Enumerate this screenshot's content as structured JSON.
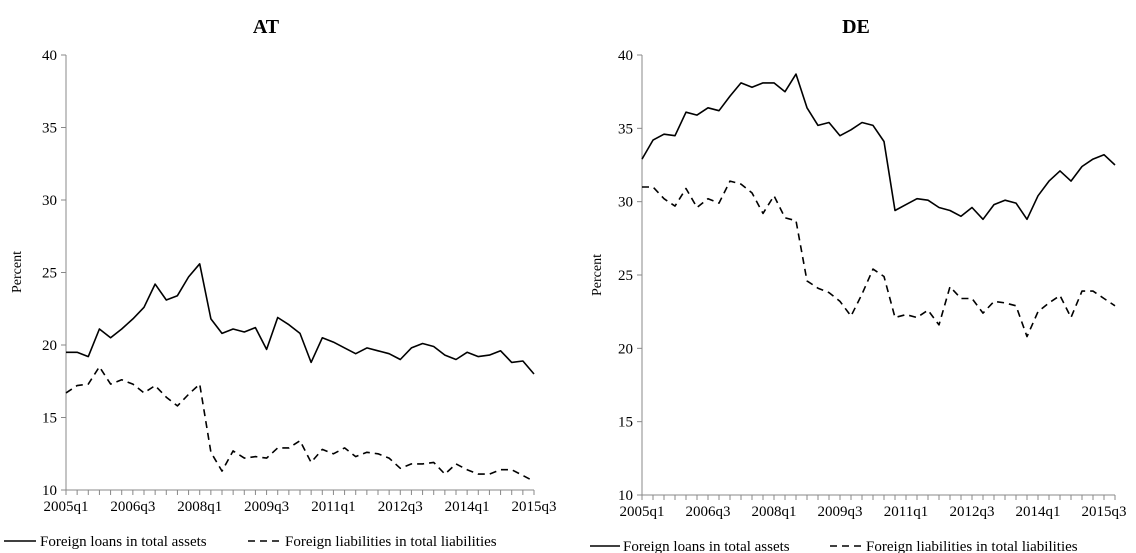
{
  "chart_data": [
    {
      "type": "line",
      "title": "AT",
      "ylabel": "Percent",
      "xlabel": "",
      "ylim": [
        10,
        40
      ],
      "yticks": [
        10,
        15,
        20,
        25,
        30,
        35,
        40
      ],
      "x_tick_labels": [
        {
          "index": 0,
          "label": "2005q1"
        },
        {
          "index": 6,
          "label": "2006q3"
        },
        {
          "index": 12,
          "label": "2008q1"
        },
        {
          "index": 18,
          "label": "2009q3"
        },
        {
          "index": 24,
          "label": "2011q1"
        },
        {
          "index": 30,
          "label": "2012q3"
        },
        {
          "index": 36,
          "label": "2014q1"
        },
        {
          "index": 42,
          "label": "2015q3"
        }
      ],
      "grid": false,
      "legend": "bottom",
      "series": [
        {
          "name": "Foreign loans in total assets",
          "style": "solid",
          "values": [
            19.5,
            19.5,
            19.2,
            21.1,
            20.5,
            21.1,
            21.8,
            22.6,
            24.2,
            23.1,
            23.4,
            24.7,
            25.6,
            21.8,
            20.8,
            21.1,
            20.9,
            21.2,
            19.7,
            21.9,
            21.4,
            20.8,
            18.8,
            20.5,
            20.2,
            19.8,
            19.4,
            19.8,
            19.6,
            19.4,
            19.0,
            19.8,
            20.1,
            19.9,
            19.3,
            19.0,
            19.5,
            19.2,
            19.3,
            19.6,
            18.8,
            18.9,
            18.0
          ]
        },
        {
          "name": "Foreign liabilities in total liabilities",
          "style": "dashed",
          "values": [
            16.7,
            17.2,
            17.3,
            18.5,
            17.3,
            17.6,
            17.3,
            16.7,
            17.2,
            16.4,
            15.8,
            16.6,
            17.3,
            12.6,
            11.3,
            12.7,
            12.2,
            12.3,
            12.2,
            12.9,
            12.9,
            13.4,
            11.9,
            12.8,
            12.5,
            12.9,
            12.3,
            12.6,
            12.5,
            12.2,
            11.5,
            11.8,
            11.8,
            11.9,
            11.1,
            11.8,
            11.4,
            11.1,
            11.1,
            11.4,
            11.4,
            11.0,
            10.6
          ]
        }
      ]
    },
    {
      "type": "line",
      "title": "DE",
      "ylabel": "Percent",
      "xlabel": "",
      "ylim": [
        10,
        40
      ],
      "yticks": [
        10,
        15,
        20,
        25,
        30,
        35,
        40
      ],
      "x_tick_labels": [
        {
          "index": 0,
          "label": "2005q1"
        },
        {
          "index": 6,
          "label": "2006q3"
        },
        {
          "index": 12,
          "label": "2008q1"
        },
        {
          "index": 18,
          "label": "2009q3"
        },
        {
          "index": 24,
          "label": "2011q1"
        },
        {
          "index": 30,
          "label": "2012q3"
        },
        {
          "index": 36,
          "label": "2014q1"
        },
        {
          "index": 42,
          "label": "2015q3"
        }
      ],
      "grid": false,
      "legend": "bottom",
      "series": [
        {
          "name": "Foreign loans in total assets",
          "style": "solid",
          "values": [
            32.9,
            34.2,
            34.6,
            34.5,
            36.1,
            35.9,
            36.4,
            36.2,
            37.2,
            38.1,
            37.8,
            38.1,
            38.1,
            37.5,
            38.7,
            36.4,
            35.2,
            35.4,
            34.5,
            34.9,
            35.4,
            35.2,
            34.1,
            29.4,
            29.8,
            30.2,
            30.1,
            29.6,
            29.4,
            29.0,
            29.6,
            28.8,
            29.8,
            30.1,
            29.9,
            28.8,
            30.4,
            31.4,
            32.1,
            31.4,
            32.4,
            32.9,
            33.2,
            32.5
          ]
        },
        {
          "name": "Foreign liabilities in total liabilities",
          "style": "dashed",
          "values": [
            31.0,
            31.0,
            30.2,
            29.7,
            30.9,
            29.6,
            30.2,
            29.9,
            31.4,
            31.2,
            30.6,
            29.2,
            30.4,
            28.9,
            28.7,
            24.6,
            24.1,
            23.8,
            23.2,
            22.2,
            23.7,
            25.4,
            24.9,
            22.1,
            22.3,
            22.1,
            22.6,
            21.6,
            24.2,
            23.4,
            23.4,
            22.4,
            23.2,
            23.1,
            22.9,
            20.8,
            22.5,
            23.1,
            23.6,
            22.1,
            23.9,
            23.9,
            23.4,
            22.9
          ]
        }
      ]
    }
  ]
}
